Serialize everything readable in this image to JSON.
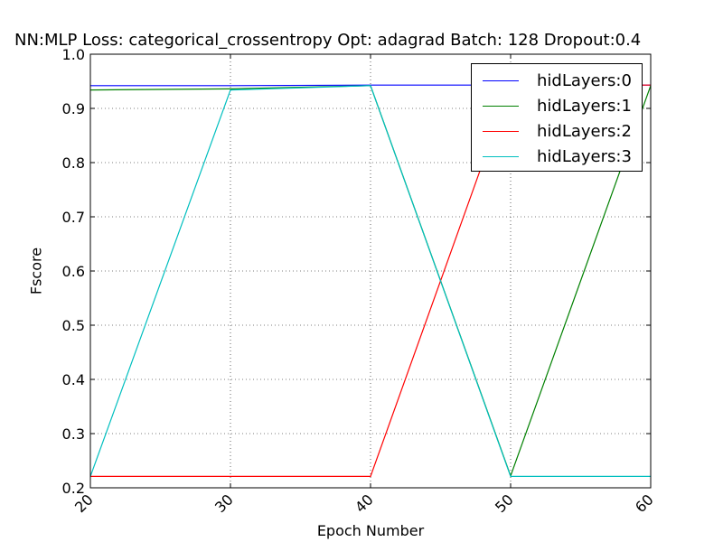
{
  "chart_data": {
    "type": "line",
    "title": "NN:MLP  Loss: categorical_crossentropy  Opt: adagrad Batch: 128 Dropout:0.4",
    "xlabel": "Epoch Number",
    "ylabel": "Fscore",
    "x": [
      20,
      30,
      40,
      50,
      60
    ],
    "xlim": [
      20,
      60
    ],
    "ylim": [
      0.2,
      1.0
    ],
    "xticks": [
      "20",
      "30",
      "40",
      "50",
      "60"
    ],
    "yticks": [
      "0.2",
      "0.3",
      "0.4",
      "0.5",
      "0.6",
      "0.7",
      "0.8",
      "0.9",
      "1.0"
    ],
    "grid": true,
    "legend_position": "top-right",
    "series": [
      {
        "name": "hidLayers:0",
        "color": "#0000ff",
        "values": [
          0.942,
          0.942,
          0.943,
          0.943,
          0.943
        ]
      },
      {
        "name": "hidLayers:1",
        "color": "#008000",
        "values": [
          0.934,
          0.936,
          0.942,
          0.222,
          0.942
        ]
      },
      {
        "name": "hidLayers:2",
        "color": "#ff0000",
        "values": [
          0.221,
          0.221,
          0.221,
          0.943,
          0.943
        ]
      },
      {
        "name": "hidLayers:3",
        "color": "#00bfbf",
        "values": [
          0.221,
          0.934,
          0.942,
          0.221,
          0.221
        ]
      }
    ]
  }
}
